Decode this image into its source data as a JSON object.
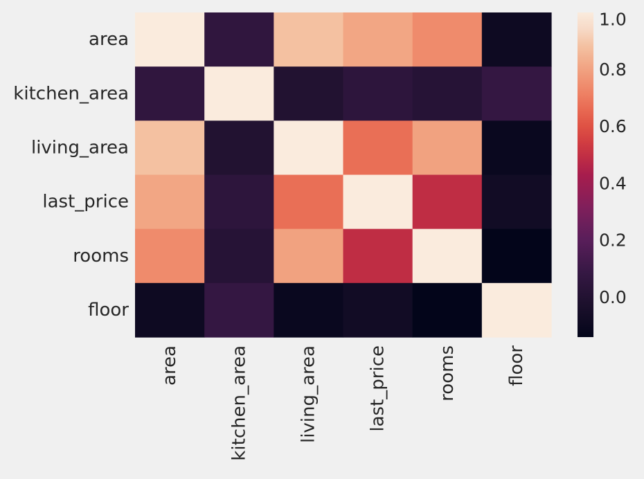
{
  "chart_data": {
    "type": "heatmap",
    "title": "",
    "xlabel": "",
    "ylabel": "",
    "rows": [
      "area",
      "kitchen_area",
      "living_area",
      "last_price",
      "rooms",
      "floor"
    ],
    "columns": [
      "area",
      "kitchen_area",
      "living_area",
      "last_price",
      "rooms",
      "floor"
    ],
    "values": [
      [
        1.0,
        0.06,
        0.88,
        0.81,
        0.74,
        -0.09
      ],
      [
        0.06,
        1.0,
        0.0,
        0.05,
        0.02,
        0.08
      ],
      [
        0.88,
        0.0,
        1.0,
        0.67,
        0.8,
        -0.11
      ],
      [
        0.81,
        0.05,
        0.67,
        1.0,
        0.49,
        -0.07
      ],
      [
        0.74,
        0.02,
        0.8,
        0.49,
        1.0,
        -0.14
      ],
      [
        -0.09,
        0.08,
        -0.11,
        -0.07,
        -0.14,
        1.0
      ]
    ],
    "colorbar": {
      "colormap": "rocket",
      "range": [
        -0.14,
        1.0
      ],
      "ticks": [
        "1.0",
        "0.8",
        "0.6",
        "0.4",
        "0.2",
        "0.0"
      ],
      "tick_values": [
        1.0,
        0.8,
        0.6,
        0.4,
        0.2,
        0.0
      ]
    },
    "grid": false
  }
}
